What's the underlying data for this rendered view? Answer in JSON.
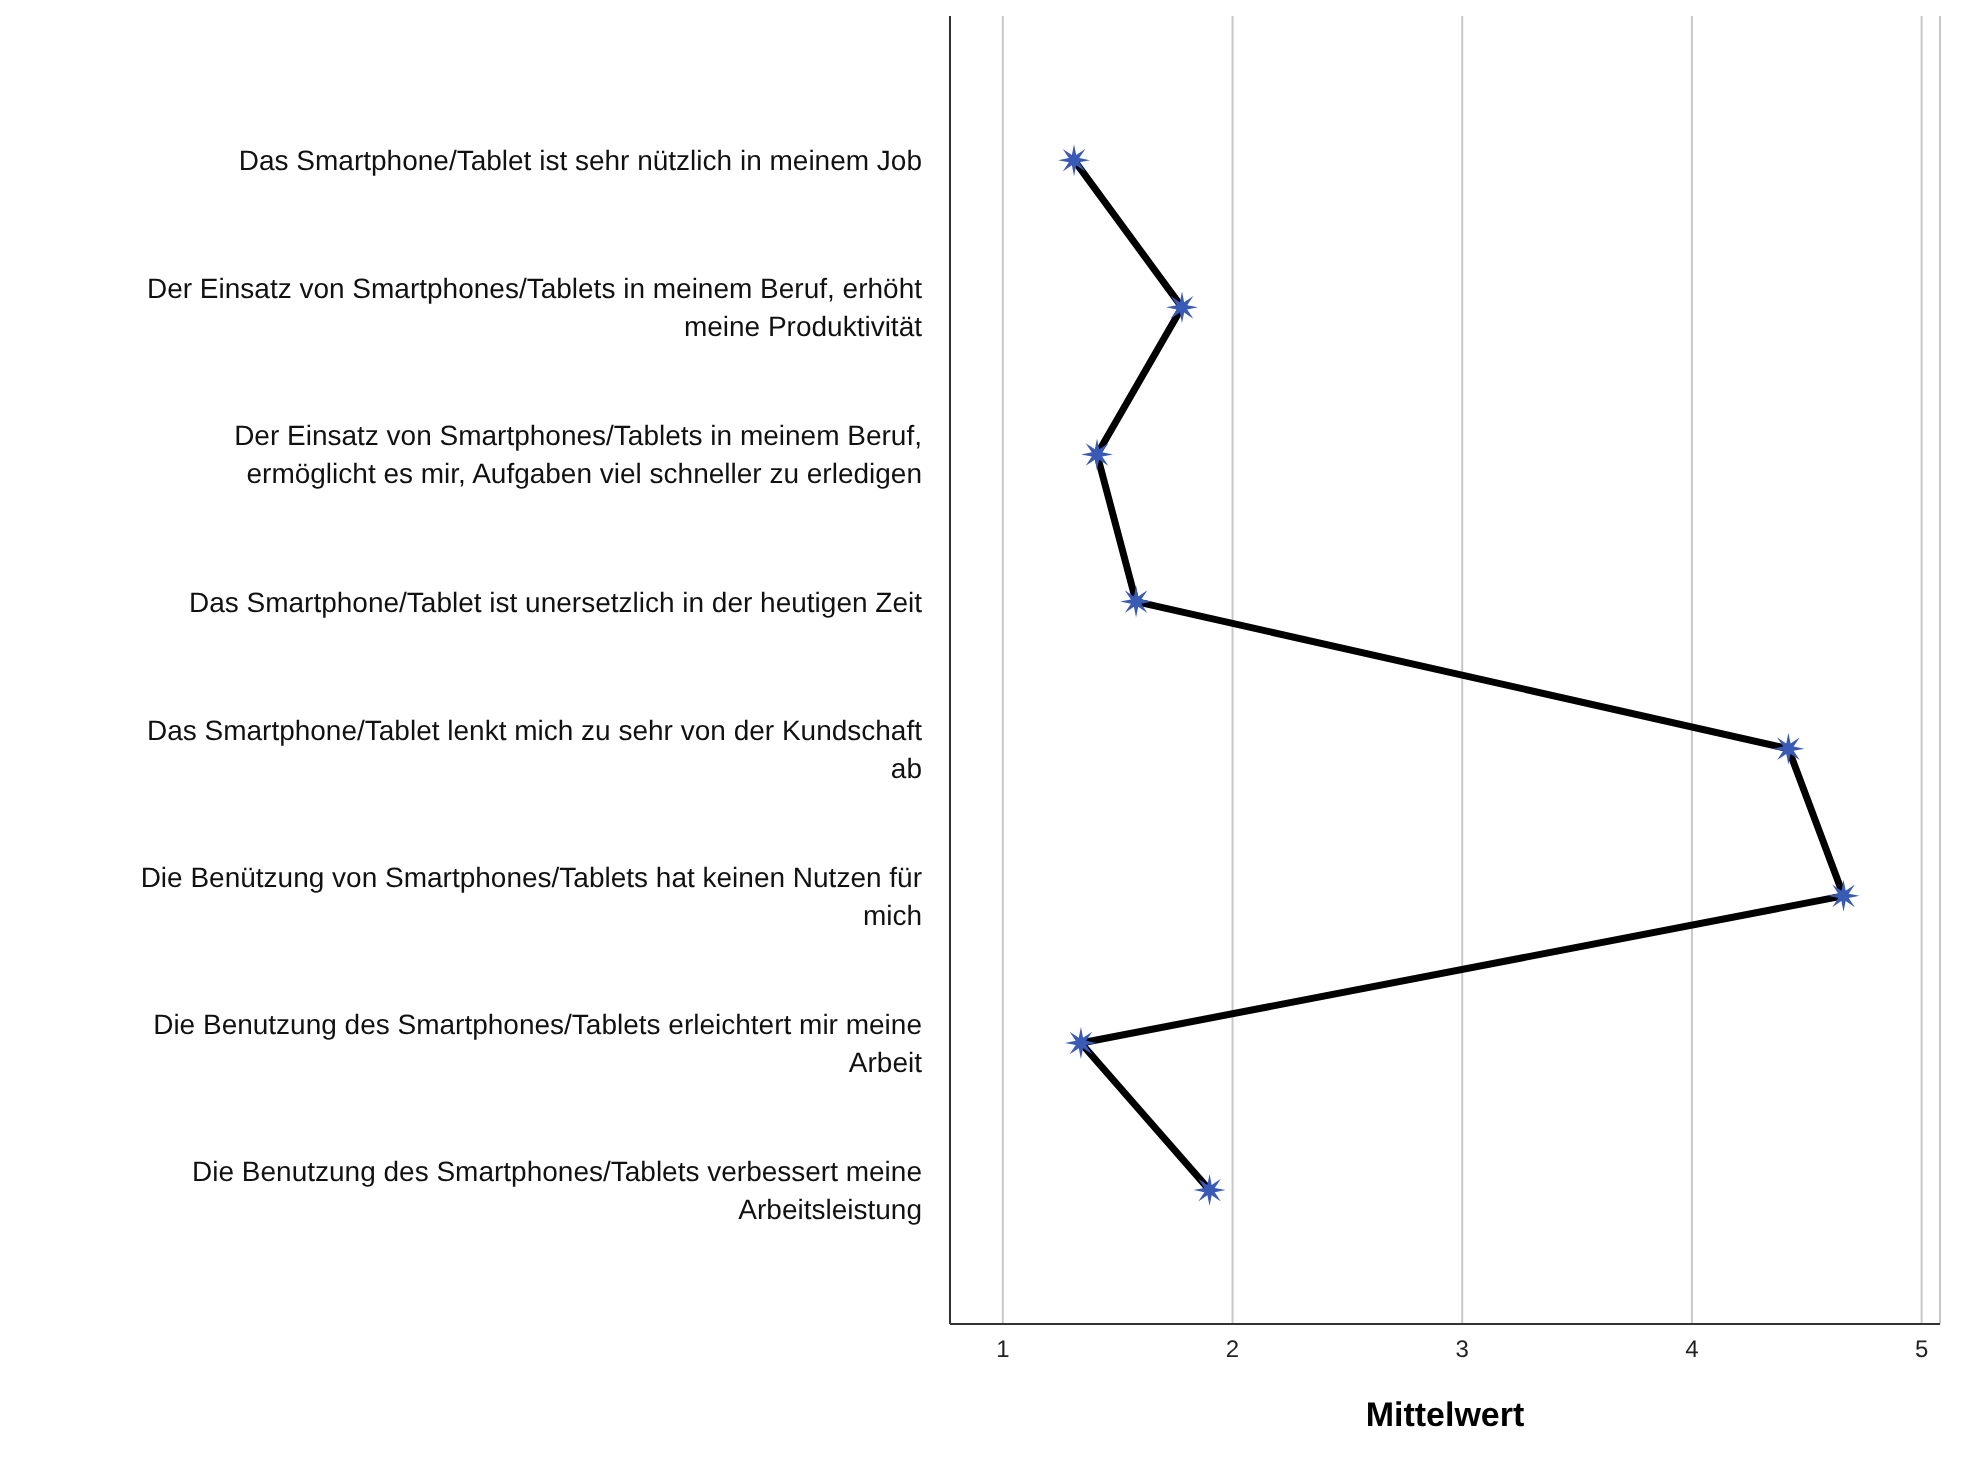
{
  "chart_data": {
    "type": "line",
    "orientation": "horizontal",
    "xlabel": "Mittelwert",
    "categories": [
      "Das Smartphone/Tablet ist sehr nützlich in meinem Job",
      "Der Einsatz von Smartphones/Tablets in meinem Beruf, erhöht meine Produktivität",
      "Der Einsatz von Smartphones/Tablets in meinem Beruf, ermöglicht es mir, Aufgaben viel schneller zu erledigen",
      "Das Smartphone/Tablet ist unersetzlich in der heutigen Zeit",
      "Das Smartphone/Tablet lenkt mich zu sehr von der Kundschaft ab",
      "Die Benützung von Smartphones/Tablets hat keinen Nutzen für mich",
      "Die Benutzung des Smartphones/Tablets erleichtert mir meine Arbeit",
      "Die Benutzung des Smartphones/Tablets verbessert meine Arbeitsleistung"
    ],
    "series": [
      {
        "color": "#000000",
        "colors": [
          "#3a5bb5",
          "#3a5bb5",
          "#3a5bb5",
          "#3a5bb5",
          "#3a5bb5",
          "#3a5bb5",
          "#3a5bb5",
          "#3a5bb5"
        ],
        "values": [
          1.31,
          1.78,
          1.41,
          1.58,
          4.42,
          4.66,
          1.34,
          1.9
        ]
      }
    ],
    "xlim": [
      0.77,
      5.08
    ],
    "xticks": [
      1,
      2,
      3,
      4,
      5
    ],
    "grid": "x",
    "marker": "star",
    "line_style": "solid",
    "legend": false
  }
}
